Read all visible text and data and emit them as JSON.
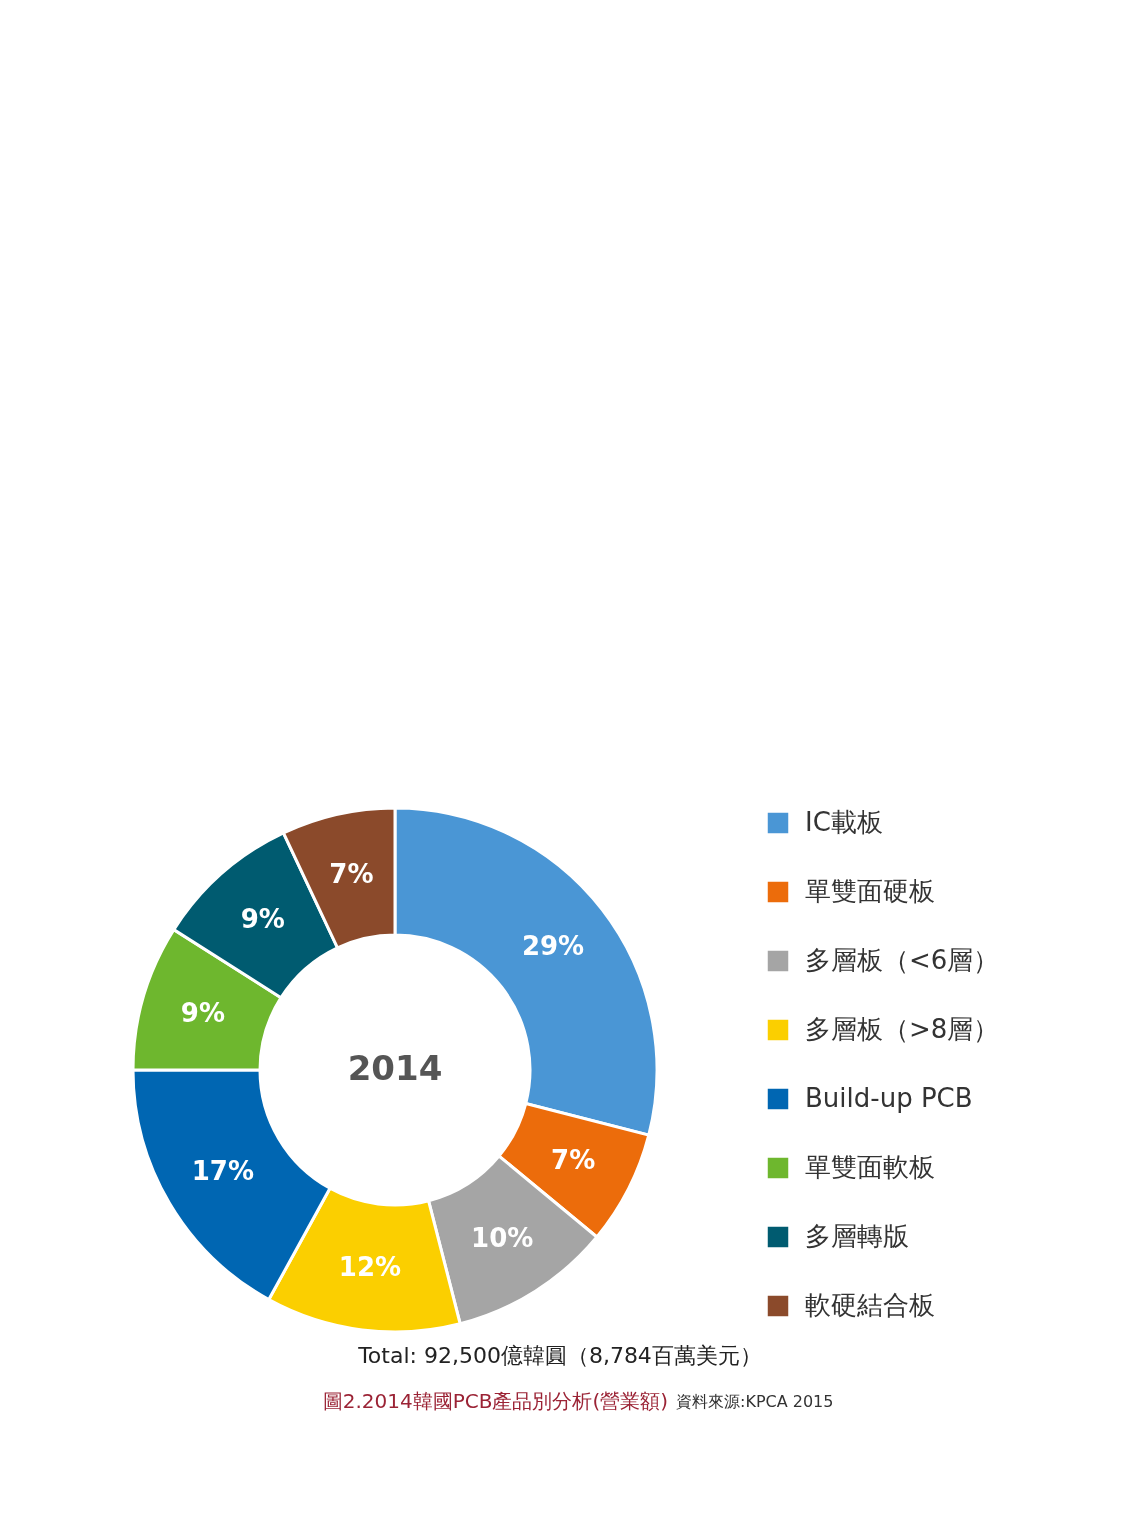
{
  "chart_data": {
    "type": "donut",
    "title": "圖2.2014韓國PCB產品別分析(營業額)",
    "categories": [
      "IC載板",
      "單雙面硬板",
      "多層板（<6層）",
      "多層板（>8層）",
      "Build-up PCB",
      "單雙面軟板",
      "多層轉版",
      "軟硬結合板"
    ],
    "values": [
      29,
      7,
      10,
      12,
      17,
      9,
      9,
      7
    ],
    "colors": [
      "#4a96d5",
      "#ec6c0b",
      "#a5a5a5",
      "#fbcf00",
      "#0066b2",
      "#6eb72e",
      "#005b70",
      "#8b4a2b"
    ],
    "value_labels": [
      "29%",
      "7%",
      "10%",
      "12%",
      "17%",
      "9%",
      "9%",
      "7%"
    ],
    "legend": "right",
    "annotations": [
      "2014",
      "Total: 92,500億韓圓（8,784百萬美元）",
      "資料來源:KPCA 2015"
    ]
  }
}
